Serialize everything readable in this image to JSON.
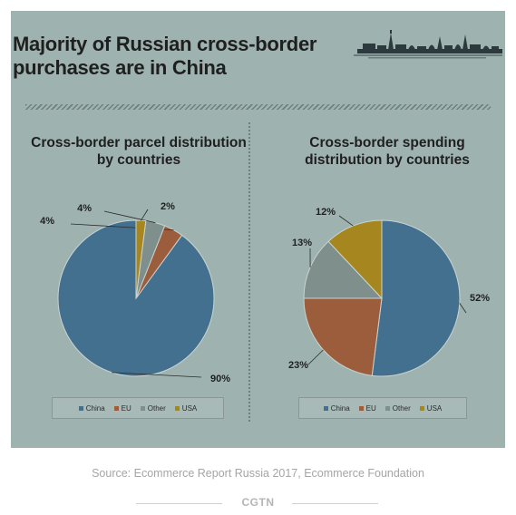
{
  "header": {
    "title": "Majority of Russian cross-border purchases are in China"
  },
  "colors": {
    "background": "#9eb3b0",
    "china": "#44708f",
    "eu": "#9b5d3b",
    "other": "#7f8f8c",
    "usa": "#a6861f"
  },
  "chart_data": [
    {
      "type": "pie",
      "title": "Cross-border parcel distribution by countries",
      "categories": [
        "China",
        "EU",
        "Other",
        "USA"
      ],
      "values": [
        90,
        4,
        4,
        2
      ],
      "labels": [
        "90%",
        "4%",
        "4%",
        "2%"
      ],
      "legend": "bottom"
    },
    {
      "type": "pie",
      "title": "Cross-border spending distribution by countries",
      "categories": [
        "China",
        "EU",
        "Other",
        "USA"
      ],
      "values": [
        52,
        23,
        13,
        12
      ],
      "labels": [
        "52%",
        "23%",
        "13%",
        "12%"
      ],
      "legend": "bottom"
    }
  ],
  "footer": {
    "source": "Source: Ecommerce Report Russia 2017, Ecommerce Foundation",
    "brand": "CGTN"
  }
}
